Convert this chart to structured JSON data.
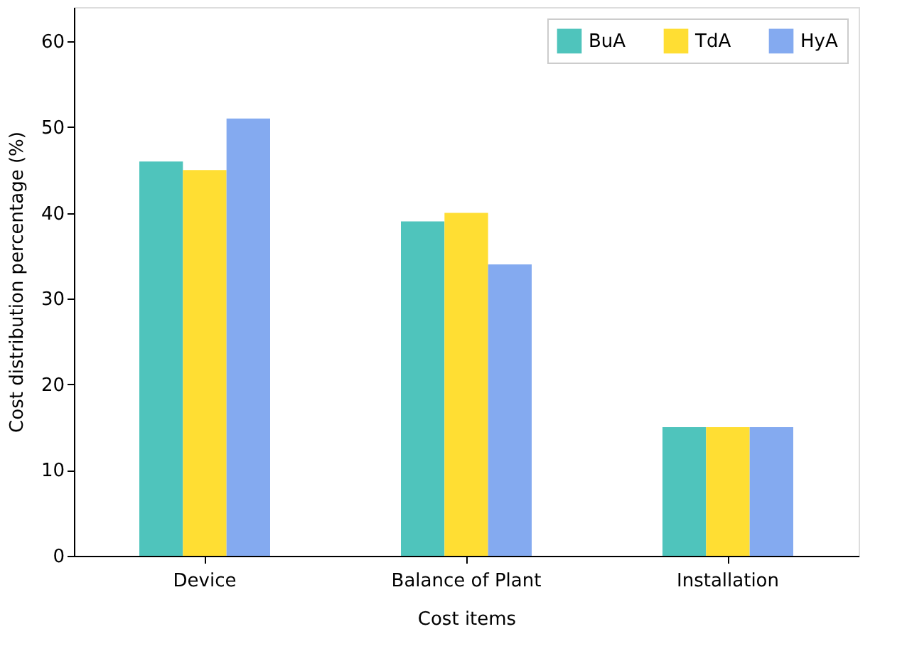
{
  "chart_data": {
    "type": "bar",
    "xlabel": "Cost items",
    "ylabel": "Cost distribution percentage (%)",
    "categories": [
      "Device",
      "Balance of Plant",
      "Installation"
    ],
    "series": [
      {
        "name": "BuA",
        "color": "#4fc4bc",
        "values": [
          46,
          39,
          15
        ]
      },
      {
        "name": "TdA",
        "color": "#ffde33",
        "values": [
          45,
          40,
          15
        ]
      },
      {
        "name": "HyA",
        "color": "#84aaf0",
        "values": [
          51,
          34,
          15
        ]
      }
    ],
    "ylim": [
      0,
      64
    ],
    "yticks": [
      0,
      10,
      20,
      30,
      40,
      50,
      60
    ],
    "grid": false,
    "legend": "top right"
  }
}
